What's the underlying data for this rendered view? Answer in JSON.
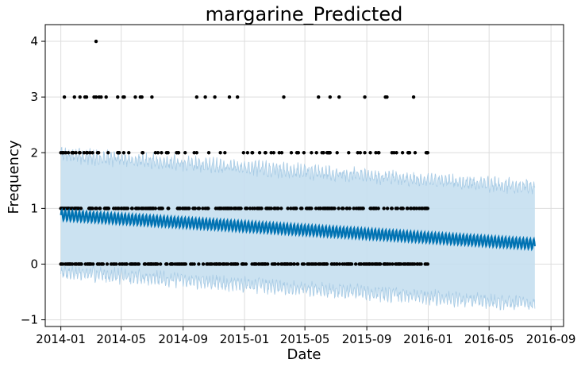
{
  "chart_data": {
    "type": "scatter",
    "title": "margarine_Predicted",
    "xlabel": "Date",
    "ylabel": "Frequency",
    "x_ticks": [
      "2014-01",
      "2014-05",
      "2014-09",
      "2015-01",
      "2015-05",
      "2015-09",
      "2016-01",
      "2016-05",
      "2016-09"
    ],
    "y_ticks": [
      "−1",
      "0",
      "1",
      "2",
      "3",
      "4"
    ],
    "xlim": [
      "2013-12-01",
      "2016-09-26"
    ],
    "ylim": [
      -1.12,
      4.3
    ],
    "grid": true,
    "legend": "none",
    "colors": {
      "forecast_line": "#0072B2",
      "uncertainty_band": "#c5dff0",
      "uncertainty_edge": "#a8cbe5",
      "observed_points": "#000000",
      "grid": "#dddddd",
      "axes": "#000000"
    },
    "forecast": {
      "x_start": "2014-01-01",
      "x_end": "2016-07-31",
      "trend_start": 0.88,
      "trend_end": 0.36,
      "weekly_amplitude": 0.09,
      "lower_start": -0.14,
      "lower_end": -0.72,
      "upper_start": 1.96,
      "upper_end": 1.38
    },
    "observed_range": [
      "2014-01-01",
      "2015-12-31"
    ],
    "observed_levels": [
      0,
      1,
      2,
      3,
      4
    ],
    "observed": {
      "value_4": [
        "2014-03-12"
      ],
      "value_3": [
        "2014-01-08",
        "2014-01-28",
        "2014-02-08",
        "2014-02-18",
        "2014-02-21",
        "2014-03-08",
        "2014-03-12",
        "2014-03-18",
        "2014-03-22",
        "2014-04-01",
        "2014-04-24",
        "2014-05-05",
        "2014-05-07",
        "2014-05-29",
        "2014-06-08",
        "2014-06-11",
        "2014-07-01",
        "2014-09-28",
        "2014-10-15",
        "2014-11-03",
        "2014-12-02",
        "2014-12-18",
        "2015-03-20",
        "2015-05-28",
        "2015-06-20",
        "2015-07-08",
        "2015-08-28",
        "2015-10-08",
        "2015-10-11",
        "2015-12-03"
      ],
      "value_2_count": 82,
      "value_1_count": 215,
      "value_0_count": 245
    }
  }
}
